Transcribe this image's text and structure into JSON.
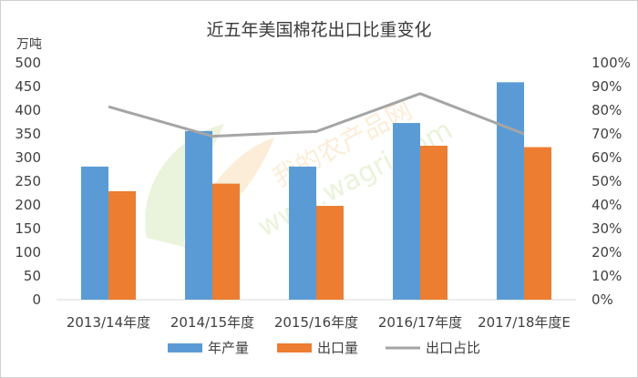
{
  "chart_data": {
    "type": "bar",
    "title": "近五年美国棉花出口比重变化",
    "y_unit": "万吨",
    "categories": [
      "2013/14年度",
      "2014/15年度",
      "2015/16年度",
      "2016/17年度",
      "2017/18年度E"
    ],
    "series": [
      {
        "name": "年产量",
        "type": "bar",
        "axis": "left",
        "color": "#5b9bd5",
        "values": [
          281,
          356,
          281,
          373,
          459
        ]
      },
      {
        "name": "出口量",
        "type": "bar",
        "axis": "left",
        "color": "#ed7d31",
        "values": [
          229,
          245,
          198,
          325,
          322
        ]
      },
      {
        "name": "出口占比",
        "type": "line",
        "axis": "right",
        "color": "#a5a5a5",
        "values": [
          0.815,
          0.69,
          0.71,
          0.87,
          0.7
        ]
      }
    ],
    "ylim_left": [
      0,
      500
    ],
    "yticks_left": [
      "0",
      "50",
      "100",
      "150",
      "200",
      "250",
      "300",
      "350",
      "400",
      "450",
      "500"
    ],
    "ylim_right": [
      0,
      1
    ],
    "yticks_right": [
      "0%",
      "10%",
      "20%",
      "30%",
      "40%",
      "50%",
      "60%",
      "70%",
      "80%",
      "90%",
      "100%"
    ],
    "legend_position": "bottom",
    "grid": false
  },
  "watermark": {
    "text_cn": "我的农产品网",
    "text_url": "www.wagri.com"
  }
}
